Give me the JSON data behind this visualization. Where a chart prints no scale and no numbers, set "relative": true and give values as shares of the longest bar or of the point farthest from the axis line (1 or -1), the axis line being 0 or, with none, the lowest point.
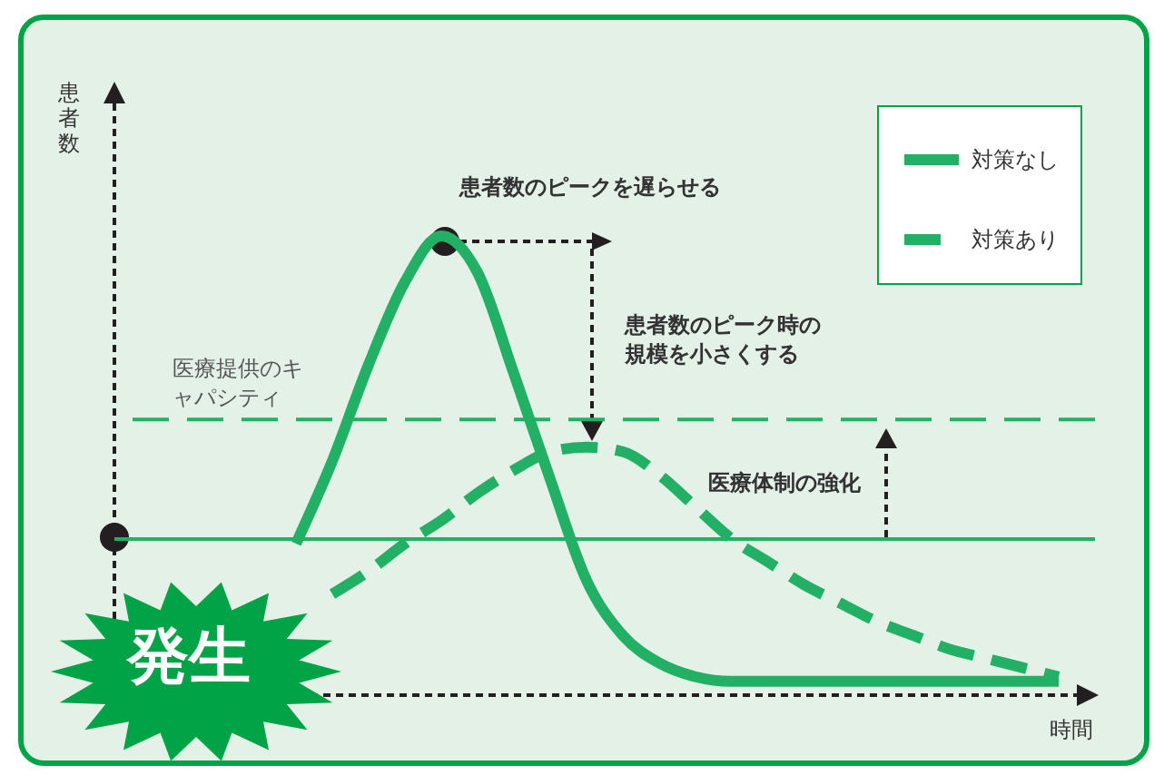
{
  "chart_data": {
    "type": "line",
    "relative": true,
    "xlabel": "時間",
    "ylabel": "患者数",
    "legend": "top right",
    "categories": [
      null,
      null,
      null,
      null,
      null,
      null,
      null,
      null,
      null,
      null,
      null,
      null,
      null,
      null,
      null,
      null,
      null,
      null,
      null,
      null,
      null,
      null,
      null,
      null,
      null,
      null,
      null,
      null
    ],
    "series": [
      {
        "name": "対策なし",
        "color": "#22b064",
        "line_style": "solid",
        "values": [
          null,
          null,
          null,
          null,
          null,
          0.33,
          0.51,
          0.72,
          0.9,
          1,
          0.92,
          0.7,
          0.47,
          0.25,
          0.13,
          0.07,
          0.04,
          0.03,
          0.03,
          0.03,
          0.03,
          0.03,
          0.03,
          0.03,
          0.03,
          0.03,
          0.03,
          null
        ]
      },
      {
        "name": "対策あり",
        "color": "#22b064",
        "line_style": "dashed",
        "values": [
          null,
          null,
          null,
          null,
          null,
          null,
          0.22,
          0.27,
          0.33,
          0.38,
          0.44,
          0.49,
          0.53,
          0.54,
          0.53,
          0.48,
          0.41,
          0.34,
          0.29,
          0.24,
          0.2,
          0.16,
          0.13,
          0.1,
          0.08,
          0.06,
          0.04,
          null
        ]
      }
    ],
    "ref_lines": [
      {
        "axis": "y",
        "value": 0.6,
        "label": "医療提供のキャパシティ",
        "color": "#22b064",
        "line_style": "dashed"
      },
      {
        "axis": "y",
        "value": 0.34,
        "label": null,
        "color": "#22b064",
        "line_style": "solid"
      }
    ],
    "annotations": [
      "患者数のピークを遅らせる",
      "患者数のピーク時の規模を小さくする",
      "医療体制の強化",
      "発生"
    ]
  }
}
